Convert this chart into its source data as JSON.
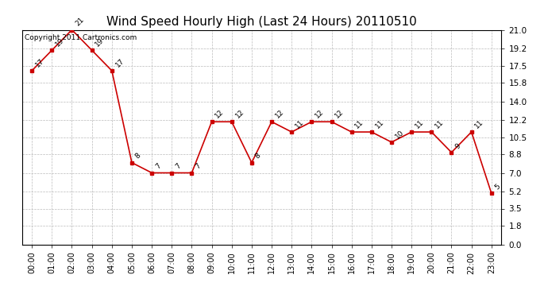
{
  "title": "Wind Speed Hourly High (Last 24 Hours) 20110510",
  "copyright": "Copyright 2011 Cartronics.com",
  "hours": [
    "00:00",
    "01:00",
    "02:00",
    "03:00",
    "04:00",
    "05:00",
    "06:00",
    "07:00",
    "08:00",
    "09:00",
    "10:00",
    "11:00",
    "12:00",
    "13:00",
    "14:00",
    "15:00",
    "16:00",
    "17:00",
    "18:00",
    "19:00",
    "20:00",
    "21:00",
    "22:00",
    "23:00"
  ],
  "values": [
    17,
    19,
    21,
    19,
    17,
    8,
    7,
    7,
    7,
    12,
    12,
    8,
    12,
    11,
    12,
    12,
    11,
    11,
    10,
    11,
    11,
    9,
    11,
    5
  ],
  "yticks": [
    0.0,
    1.8,
    3.5,
    5.2,
    7.0,
    8.8,
    10.5,
    12.2,
    14.0,
    15.8,
    17.5,
    19.2,
    21.0
  ],
  "line_color": "#cc0000",
  "marker_color": "#cc0000",
  "bg_color": "#ffffff",
  "grid_color": "#bbbbbb",
  "title_fontsize": 11,
  "label_fontsize": 7,
  "copyright_fontsize": 6.5
}
